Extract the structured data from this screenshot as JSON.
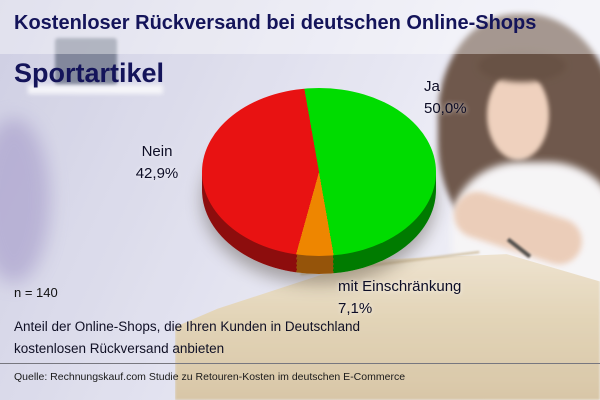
{
  "header": {
    "title": "Kostenloser Rückversand bei deutschen Online-Shops",
    "category": "Sportartikel"
  },
  "chart_data": {
    "type": "pie",
    "title": "Kostenloser Rückversand bei deutschen Online-Shops – Sportartikel",
    "labels": [
      "Ja",
      "mit Einschränkung",
      "Nein"
    ],
    "values": [
      50.0,
      7.1,
      42.9
    ],
    "value_labels": [
      "50,0%",
      "7,1%",
      "42,9%"
    ],
    "colors": [
      "#00dc00",
      "#ee8600",
      "#e81212"
    ],
    "colors_dark": [
      "#007b00",
      "#95540a",
      "#8d0d0d"
    ],
    "start_angle_deg": -10,
    "n": 140,
    "legend_position": "labels around pie",
    "style": "3d-pie"
  },
  "annotations": {
    "ja": {
      "label": "Ja",
      "value": "50,0%"
    },
    "nein": {
      "label": "Nein",
      "value": "42,9%"
    },
    "einschraenkung": {
      "label": "mit Einschränkung",
      "value": "7,1%"
    }
  },
  "footer": {
    "sample_size": "n = 140",
    "caption_line1": "Anteil der Online-Shops, die Ihren Kunden in Deutschland",
    "caption_line2": "kostenlosen Rückversand anbieten",
    "source": "Quelle: Rechnungskauf.com Studie zu Retouren-Kosten im deutschen E-Commerce"
  }
}
